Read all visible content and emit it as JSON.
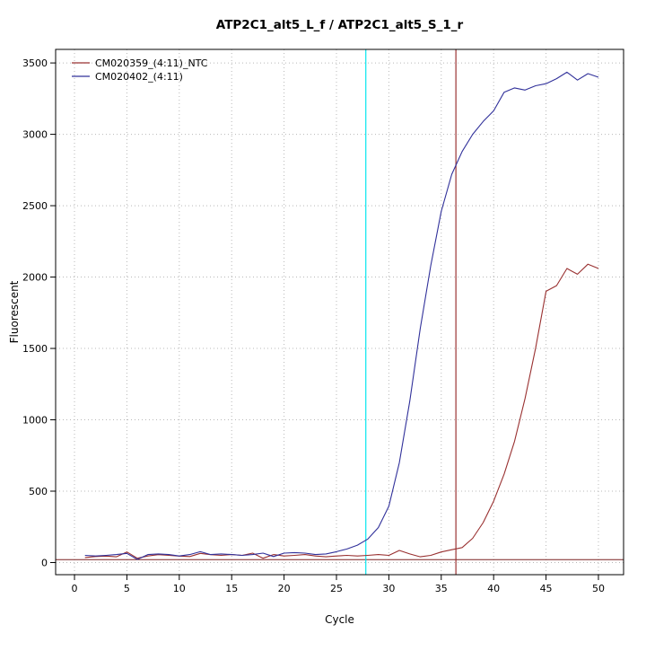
{
  "page": {
    "title": "ATP2C1_alt5_L_f / ATP2C1_alt5_S_1_r"
  },
  "chart_data": {
    "type": "line",
    "title": "ATP2C1_alt5_L_f / ATP2C1_alt5_S_1_r",
    "xlabel": "Cycle",
    "ylabel": "Fluorescent",
    "xlim": [
      -1.8,
      52.4
    ],
    "ylim": [
      -85,
      3595
    ],
    "xticks": [
      0,
      5,
      10,
      15,
      20,
      25,
      30,
      35,
      40,
      45,
      50
    ],
    "yticks": [
      0,
      500,
      1000,
      1500,
      2000,
      2500,
      3000,
      3500
    ],
    "grid": "dotted",
    "legend": {
      "position": "top-left"
    },
    "x": [
      1,
      2,
      3,
      4,
      5,
      6,
      7,
      8,
      9,
      10,
      11,
      12,
      13,
      14,
      15,
      16,
      17,
      18,
      19,
      20,
      21,
      22,
      23,
      24,
      25,
      26,
      27,
      28,
      29,
      30,
      31,
      32,
      33,
      34,
      35,
      36,
      37,
      38,
      39,
      40,
      41,
      42,
      43,
      44,
      45,
      46,
      47,
      48,
      49,
      50
    ],
    "series": [
      {
        "name": "CM020359_(4:11)_NTC",
        "color": "#993030",
        "values": [
          35,
          42,
          45,
          40,
          74,
          30,
          46,
          55,
          50,
          45,
          42,
          64,
          55,
          50,
          56,
          50,
          66,
          30,
          56,
          46,
          50,
          56,
          46,
          40,
          46,
          50,
          46,
          50,
          56,
          50,
          85,
          60,
          40,
          50,
          74,
          90,
          105,
          170,
          280,
          430,
          620,
          850,
          1150,
          1500,
          1900,
          1940,
          2060,
          2020,
          2090,
          2060
        ]
      },
      {
        "name": "CM020402_(4:11)",
        "color": "#30309a",
        "values": [
          50,
          46,
          50,
          56,
          64,
          22,
          56,
          60,
          56,
          46,
          56,
          76,
          56,
          60,
          56,
          50,
          56,
          66,
          42,
          66,
          70,
          66,
          56,
          60,
          76,
          95,
          122,
          165,
          245,
          395,
          700,
          1130,
          1640,
          2080,
          2460,
          2720,
          2880,
          3000,
          3090,
          3165,
          3295,
          3325,
          3310,
          3340,
          3355,
          3390,
          3435,
          3380,
          3425,
          3400
        ]
      }
    ],
    "vlines": [
      {
        "x": 27.8,
        "color": "#00e5ee",
        "label": "ct-marker-cyan"
      },
      {
        "x": 36.4,
        "color": "#993030",
        "label": "ct-marker-red"
      }
    ],
    "hlines": [
      {
        "y": 20,
        "color": "#7a2020",
        "label": "baseline-threshold"
      }
    ],
    "colors": {
      "grid": "#b8b8b8",
      "axis": "#000000",
      "background": "#ffffff"
    }
  }
}
